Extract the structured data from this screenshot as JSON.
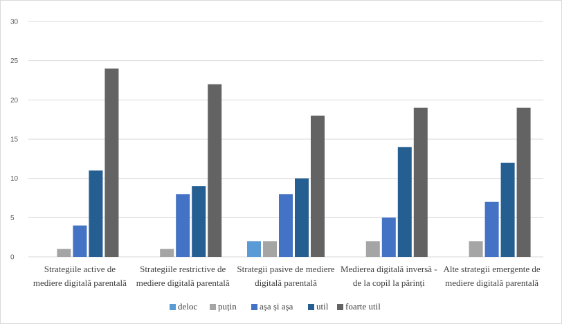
{
  "chart_data": {
    "type": "bar",
    "title": "",
    "xlabel": "",
    "ylabel": "",
    "ylim": [
      0,
      30
    ],
    "yticks": [
      0,
      5,
      10,
      15,
      20,
      25,
      30
    ],
    "grid": true,
    "legend_position": "bottom",
    "categories": [
      [
        "Strategiile active de",
        "mediere digitală parentală"
      ],
      [
        "Strategiile restrictive de",
        "mediere digitală parentală"
      ],
      [
        "Strategii pasive de mediere",
        "digitală parentală"
      ],
      [
        "Medierea digitală inversă -",
        "de la copil la părinți"
      ],
      [
        "Alte strategii emergente de",
        "mediere digitală parentală"
      ]
    ],
    "series": [
      {
        "name": "deloc",
        "color": "#5b9bd5",
        "values": [
          0,
          0,
          2,
          0,
          0
        ]
      },
      {
        "name": "puțin",
        "color": "#a5a5a5",
        "values": [
          1,
          1,
          2,
          2,
          2
        ]
      },
      {
        "name": "așa și așa",
        "color": "#4472c4",
        "values": [
          4,
          8,
          8,
          5,
          7
        ]
      },
      {
        "name": "util",
        "color": "#255e91",
        "values": [
          11,
          9,
          10,
          14,
          12
        ]
      },
      {
        "name": "foarte util",
        "color": "#636363",
        "values": [
          24,
          22,
          18,
          19,
          19
        ]
      }
    ]
  }
}
